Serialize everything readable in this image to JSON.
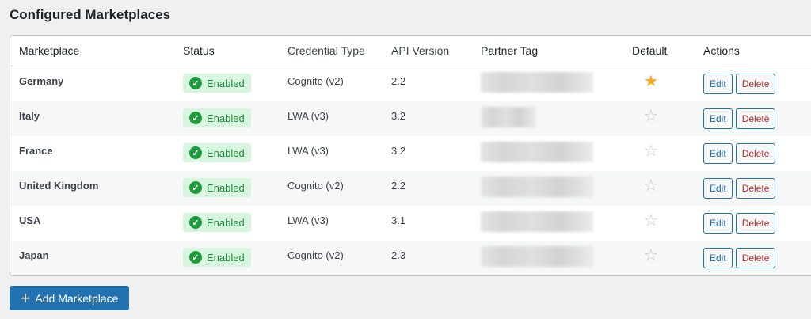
{
  "title": "Configured Marketplaces",
  "columns": [
    "Marketplace",
    "Status",
    "Credential Type",
    "API Version",
    "Partner Tag",
    "Default",
    "Actions"
  ],
  "rows": [
    {
      "marketplace": "Germany",
      "status": "Enabled",
      "credential": "Cognito (v2)",
      "api": "2.2",
      "default": true
    },
    {
      "marketplace": "Italy",
      "status": "Enabled",
      "credential": "LWA (v3)",
      "api": "3.2",
      "default": false
    },
    {
      "marketplace": "France",
      "status": "Enabled",
      "credential": "LWA (v3)",
      "api": "3.2",
      "default": false
    },
    {
      "marketplace": "United Kingdom",
      "status": "Enabled",
      "credential": "Cognito (v2)",
      "api": "2.2",
      "default": false
    },
    {
      "marketplace": "USA",
      "status": "Enabled",
      "credential": "LWA (v3)",
      "api": "3.1",
      "default": false
    },
    {
      "marketplace": "Japan",
      "status": "Enabled",
      "credential": "Cognito (v2)",
      "api": "2.3",
      "default": false
    }
  ],
  "actions": {
    "edit": "Edit",
    "delete": "Delete"
  },
  "add_button": "Add Marketplace",
  "colors": {
    "accent": "#2271b1",
    "enabled_bg": "#d7f5df",
    "enabled_text": "#1e8c3a",
    "star": "#f0ad1e",
    "delete": "#b32d2e"
  }
}
